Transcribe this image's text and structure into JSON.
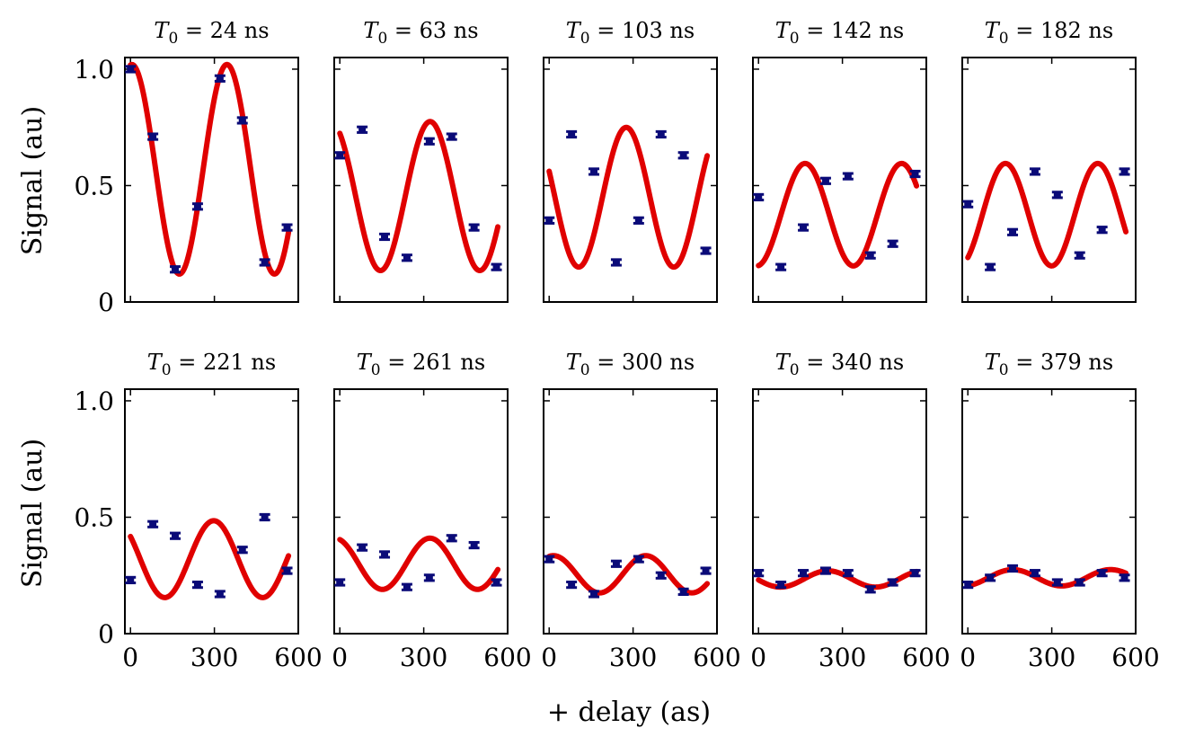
{
  "chart_data": {
    "type": "scatter",
    "layout": "small-multiples 2x5",
    "xlabel": "+ delay (as)",
    "ylabel": "Signal (au)",
    "xlim": [
      -20,
      600
    ],
    "ylim": [
      0,
      1.05
    ],
    "xticks": [
      0,
      300,
      600
    ],
    "yticks": [
      0,
      0.5,
      1.0
    ],
    "xtick_labels": [
      "0",
      "300",
      "600"
    ],
    "ytick_labels": [
      "0",
      "0.5",
      "1.0"
    ],
    "colors": {
      "fit": "#e00000",
      "data": "#0a0a78",
      "frame": "#000000"
    },
    "panels": [
      {
        "title_var": "T",
        "title_sub": "0",
        "title_rest": " = 24 ns",
        "x": [
          0,
          80,
          160,
          240,
          320,
          400,
          480,
          560
        ],
        "y": [
          1.0,
          0.71,
          0.14,
          0.41,
          0.96,
          0.78,
          0.17,
          0.32
        ],
        "yerr": 0.012,
        "fit": {
          "offset": 0.57,
          "amplitude": 0.45,
          "period": 340,
          "phase": -0.09,
          "xmin": 0,
          "xmax": 565
        }
      },
      {
        "title_var": "T",
        "title_sub": "0",
        "title_rest": " = 63 ns",
        "x": [
          0,
          80,
          160,
          240,
          320,
          400,
          480,
          560
        ],
        "y": [
          0.63,
          0.74,
          0.28,
          0.19,
          0.69,
          0.71,
          0.32,
          0.15
        ],
        "yerr": 0.012,
        "fit": {
          "offset": 0.455,
          "amplitude": 0.32,
          "period": 355,
          "phase": 0.57,
          "xmin": 0,
          "xmax": 565
        }
      },
      {
        "title_var": "T",
        "title_sub": "0",
        "title_rest": " = 103 ns",
        "x": [
          0,
          80,
          160,
          240,
          320,
          400,
          480,
          560
        ],
        "y": [
          0.35,
          0.72,
          0.56,
          0.17,
          0.35,
          0.72,
          0.63,
          0.22
        ],
        "yerr": 0.012,
        "fit": {
          "offset": 0.45,
          "amplitude": 0.3,
          "period": 340,
          "phase": 1.19,
          "xmin": 0,
          "xmax": 565
        }
      },
      {
        "title_var": "T",
        "title_sub": "0",
        "title_rest": " = 142 ns",
        "x": [
          0,
          80,
          160,
          240,
          320,
          400,
          480,
          560
        ],
        "y": [
          0.45,
          0.15,
          0.32,
          0.52,
          0.54,
          0.2,
          0.25,
          0.55
        ],
        "yerr": 0.012,
        "fit": {
          "offset": 0.375,
          "amplitude": 0.22,
          "period": 345,
          "phase": 3.25,
          "xmin": 0,
          "xmax": 565
        }
      },
      {
        "title_var": "T",
        "title_sub": "0",
        "title_rest": " = 182 ns",
        "x": [
          0,
          80,
          160,
          240,
          320,
          400,
          480,
          560
        ],
        "y": [
          0.42,
          0.15,
          0.3,
          0.56,
          0.46,
          0.2,
          0.31,
          0.56
        ],
        "yerr": 0.012,
        "fit": {
          "offset": 0.375,
          "amplitude": 0.22,
          "period": 330,
          "phase": 3.72,
          "xmin": 0,
          "xmax": 565
        }
      },
      {
        "title_var": "T",
        "title_sub": "0",
        "title_rest": " = 221 ns",
        "x": [
          0,
          80,
          160,
          240,
          320,
          400,
          480,
          560
        ],
        "y": [
          0.23,
          0.47,
          0.42,
          0.21,
          0.17,
          0.36,
          0.5,
          0.27
        ],
        "yerr": 0.012,
        "fit": {
          "offset": 0.32,
          "amplitude": 0.165,
          "period": 350,
          "phase": 0.94,
          "xmin": 0,
          "xmax": 565
        }
      },
      {
        "title_var": "T",
        "title_sub": "0",
        "title_rest": " = 261 ns",
        "x": [
          0,
          80,
          160,
          240,
          320,
          400,
          480,
          560
        ],
        "y": [
          0.22,
          0.37,
          0.34,
          0.2,
          0.24,
          0.41,
          0.38,
          0.22
        ],
        "yerr": 0.012,
        "fit": {
          "offset": 0.3,
          "amplitude": 0.11,
          "period": 340,
          "phase": 0.33,
          "xmin": 0,
          "xmax": 565
        }
      },
      {
        "title_var": "T",
        "title_sub": "0",
        "title_rest": " = 300 ns",
        "x": [
          0,
          80,
          160,
          240,
          320,
          400,
          480,
          560
        ],
        "y": [
          0.32,
          0.21,
          0.17,
          0.3,
          0.32,
          0.25,
          0.18,
          0.27
        ],
        "yerr": 0.012,
        "fit": {
          "offset": 0.255,
          "amplitude": 0.08,
          "period": 330,
          "phase": -0.29,
          "xmin": 0,
          "xmax": 565
        }
      },
      {
        "title_var": "T",
        "title_sub": "0",
        "title_rest": " = 340 ns",
        "x": [
          0,
          80,
          160,
          240,
          320,
          400,
          480,
          560
        ],
        "y": [
          0.26,
          0.21,
          0.26,
          0.27,
          0.26,
          0.19,
          0.22,
          0.26
        ],
        "yerr": 0.012,
        "fit": {
          "offset": 0.235,
          "amplitude": 0.035,
          "period": 340,
          "phase": 1.7,
          "xmin": 0,
          "xmax": 565
        }
      },
      {
        "title_var": "T",
        "title_sub": "0",
        "title_rest": " = 379 ns",
        "x": [
          0,
          80,
          160,
          240,
          320,
          400,
          480,
          560
        ],
        "y": [
          0.21,
          0.24,
          0.28,
          0.26,
          0.22,
          0.22,
          0.26,
          0.24
        ],
        "yerr": 0.012,
        "fit": {
          "offset": 0.24,
          "amplitude": 0.035,
          "period": 350,
          "phase": 3.4,
          "xmin": 0,
          "xmax": 565
        }
      }
    ]
  }
}
